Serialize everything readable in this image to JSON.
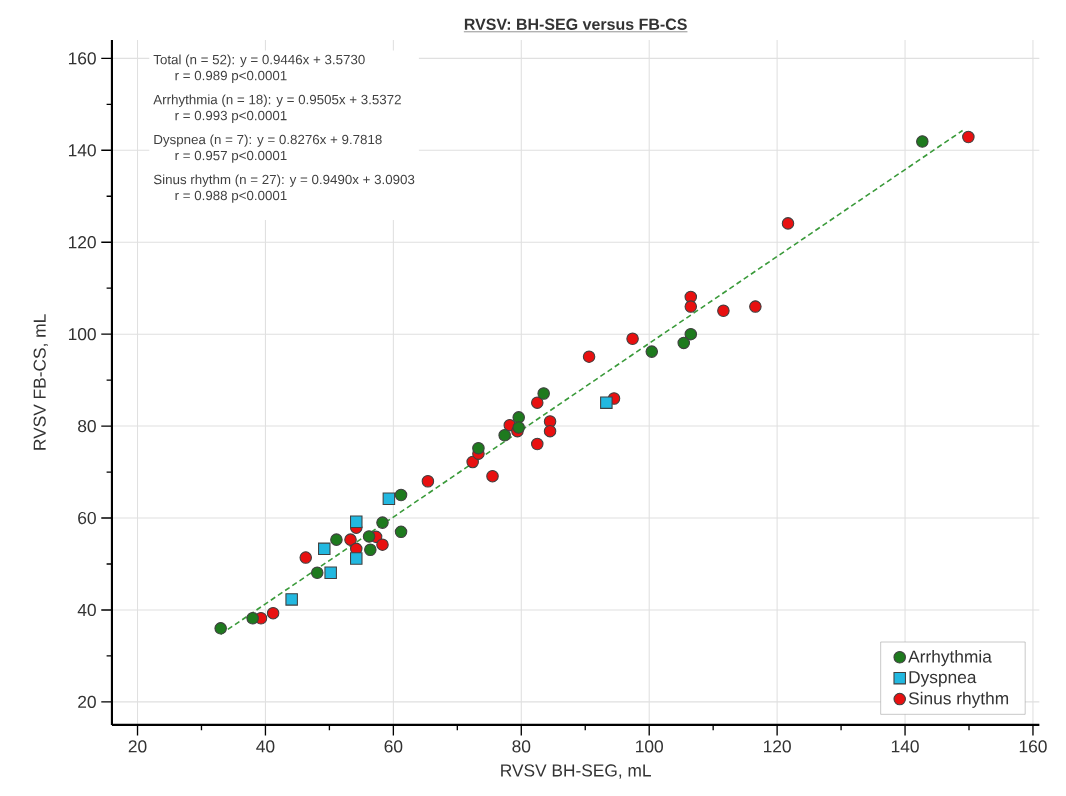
{
  "chart_data": {
    "type": "scatter",
    "title": "RVSV: BH-SEG versus FB-CS",
    "xlabel": "RVSV BH-SEG, mL",
    "ylabel": "RVSV FB-CS, mL",
    "xlim": [
      16,
      161
    ],
    "ylim": [
      15,
      164
    ],
    "xticks": [
      20,
      40,
      60,
      80,
      100,
      120,
      140,
      160
    ],
    "yticks": [
      20,
      40,
      60,
      80,
      100,
      120,
      140,
      160
    ],
    "grid": true,
    "legend": "bottom right",
    "annotations": [
      "Total (n = 52): y = 0.9446x + 3.5730",
      "r = 0.989     p<0.0001",
      "Arrhythmia (n = 18): y = 0.9505x + 3.5372",
      "r = 0.993     p<0.0001",
      "Dyspnea (n = 7): y = 0.8276x + 9.7818",
      "r = 0.957     p<0.0001",
      "Sinus rhythm (n = 27): y = 0.9490x + 3.0903",
      "r = 0.988     p<0.0001"
    ],
    "series": [
      {
        "type": "line",
        "color": "#3a9a3a",
        "line_style": "dashed",
        "marker": "none",
        "x": [
          33,
          149
        ],
        "values": [
          34.7,
          144.3
        ]
      },
      {
        "name": "Arrhythmia",
        "color": "#1e7a1e",
        "marker": "circle",
        "x": [
          33,
          38,
          48.1,
          51.1,
          56.2,
          56.4,
          58.3,
          61.2,
          61.2,
          73.3,
          77.4,
          79.6,
          79.6,
          83.5,
          100.4,
          105.4,
          106.5,
          142.7
        ],
        "values": [
          36,
          38.2,
          48.1,
          55.3,
          56,
          53.1,
          59,
          65,
          57,
          75.2,
          78,
          81.9,
          79.7,
          87.1,
          96.2,
          98.1,
          100,
          141.9
        ]
      },
      {
        "name": "Dyspnea",
        "color": "#22b8e0",
        "marker": "square",
        "x": [
          59.3,
          54.2,
          49.2,
          54.2,
          50.2,
          44.1,
          93.3
        ],
        "values": [
          64.2,
          59.2,
          53.3,
          51.2,
          48.1,
          42.3,
          85.1
        ]
      },
      {
        "name": "Sinus rhythm",
        "color": "#e81010",
        "marker": "circle",
        "x": [
          39.3,
          41.2,
          46.3,
          53.3,
          54.2,
          54.2,
          57.3,
          58.3,
          65.4,
          72.4,
          73.3,
          75.5,
          78.2,
          79.4,
          82.5,
          84.5,
          84.5,
          82.5,
          90.6,
          94.5,
          97.4,
          106.5,
          106.5,
          111.6,
          116.6,
          121.7,
          149.9
        ],
        "values": [
          38.2,
          39.3,
          51.4,
          55.3,
          57.9,
          53.3,
          55.9,
          54.2,
          68,
          72.2,
          74,
          69.1,
          80.2,
          78.9,
          85.1,
          81,
          78.9,
          76.1,
          95.1,
          86,
          99,
          108.1,
          106,
          105.1,
          106,
          124.1,
          142.9
        ]
      }
    ]
  }
}
